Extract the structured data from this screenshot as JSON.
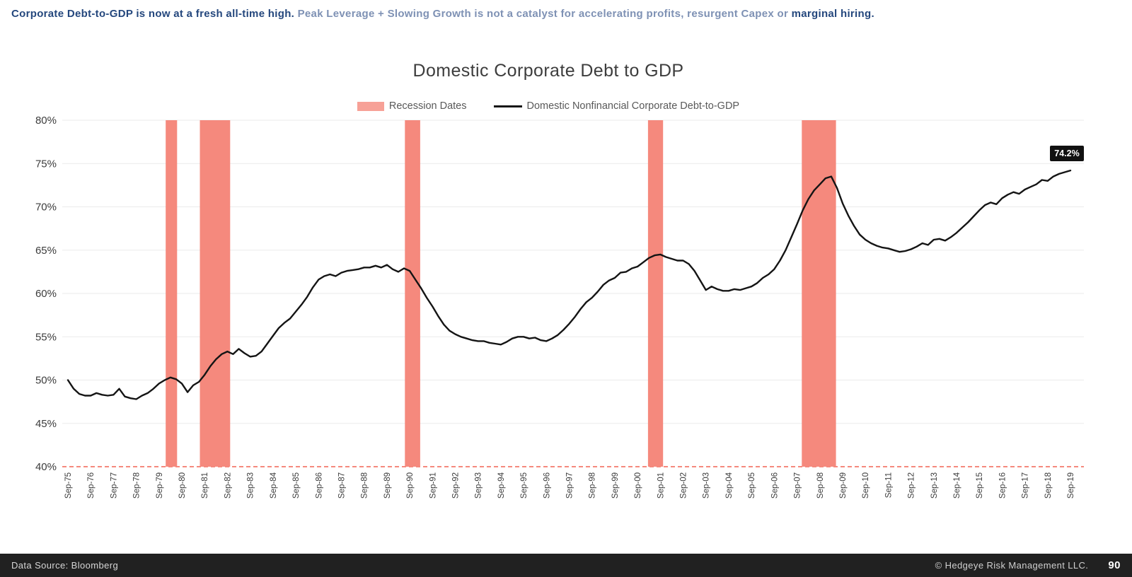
{
  "headline": {
    "part1": "Corporate Debt-to-GDP is now at a fresh all-time high.",
    "part2": " Peak Leverage + Slowing Growth is not a catalyst for accelerating profits, resurgent Capex or ",
    "part3": "marginal hiring."
  },
  "chart_data": {
    "type": "line",
    "title": "Domestic Corporate Debt to GDP",
    "legend": [
      {
        "label": "Recession Dates",
        "swatch": "area",
        "color": "#F5897D"
      },
      {
        "label": "Domestic Nonfinancial Corporate Debt-to-GDP",
        "swatch": "line",
        "color": "#141414"
      }
    ],
    "ylim": [
      40,
      80
    ],
    "y_ticks": [
      40,
      45,
      50,
      55,
      60,
      65,
      70,
      75,
      80
    ],
    "y_tick_suffix": "%",
    "x_start": 1975.75,
    "x_step": 0.25,
    "x_tick_labels": [
      "Sep-75",
      "Sep-76",
      "Sep-77",
      "Sep-78",
      "Sep-79",
      "Sep-80",
      "Sep-81",
      "Sep-82",
      "Sep-83",
      "Sep-84",
      "Sep-85",
      "Sep-86",
      "Sep-87",
      "Sep-88",
      "Sep-89",
      "Sep-90",
      "Sep-91",
      "Sep-92",
      "Sep-93",
      "Sep-94",
      "Sep-95",
      "Sep-96",
      "Sep-97",
      "Sep-98",
      "Sep-99",
      "Sep-00",
      "Sep-01",
      "Sep-02",
      "Sep-03",
      "Sep-04",
      "Sep-05",
      "Sep-06",
      "Sep-07",
      "Sep-08",
      "Sep-09",
      "Sep-10",
      "Sep-11",
      "Sep-12",
      "Sep-13",
      "Sep-14",
      "Sep-15",
      "Sep-16",
      "Sep-17",
      "Sep-18",
      "Sep-19"
    ],
    "values": [
      50.0,
      49.0,
      48.4,
      48.2,
      48.2,
      48.5,
      48.3,
      48.2,
      48.3,
      49.0,
      48.1,
      47.9,
      47.8,
      48.2,
      48.5,
      49.0,
      49.6,
      50.0,
      50.3,
      50.1,
      49.6,
      48.6,
      49.4,
      49.8,
      50.6,
      51.6,
      52.4,
      53.0,
      53.3,
      53.0,
      53.6,
      53.1,
      52.7,
      52.8,
      53.3,
      54.2,
      55.1,
      56.0,
      56.6,
      57.1,
      57.9,
      58.7,
      59.6,
      60.7,
      61.6,
      62.0,
      62.2,
      62.0,
      62.4,
      62.6,
      62.7,
      62.8,
      63.0,
      63.0,
      63.2,
      63.0,
      63.3,
      62.8,
      62.5,
      62.9,
      62.6,
      61.6,
      60.6,
      59.5,
      58.5,
      57.4,
      56.4,
      55.7,
      55.3,
      55.0,
      54.8,
      54.6,
      54.5,
      54.5,
      54.3,
      54.2,
      54.1,
      54.4,
      54.8,
      55.0,
      55.0,
      54.8,
      54.9,
      54.6,
      54.5,
      54.8,
      55.2,
      55.8,
      56.5,
      57.3,
      58.2,
      59.0,
      59.5,
      60.2,
      61.0,
      61.5,
      61.8,
      62.4,
      62.5,
      62.9,
      63.1,
      63.6,
      64.1,
      64.4,
      64.5,
      64.2,
      64.0,
      63.8,
      63.8,
      63.4,
      62.6,
      61.5,
      60.4,
      60.8,
      60.5,
      60.3,
      60.3,
      60.5,
      60.4,
      60.6,
      60.8,
      61.2,
      61.8,
      62.2,
      62.8,
      63.8,
      65.0,
      66.5,
      68.0,
      69.6,
      70.9,
      71.9,
      72.6,
      73.3,
      73.5,
      72.2,
      70.4,
      69.0,
      67.8,
      66.8,
      66.2,
      65.8,
      65.5,
      65.3,
      65.2,
      65.0,
      64.8,
      64.9,
      65.1,
      65.4,
      65.8,
      65.6,
      66.2,
      66.3,
      66.1,
      66.5,
      67.0,
      67.6,
      68.2,
      68.9,
      69.6,
      70.2,
      70.5,
      70.3,
      71.0,
      71.4,
      71.7,
      71.5,
      72.0,
      72.3,
      72.6,
      73.1,
      73.0,
      73.5,
      73.8,
      74.0,
      74.2
    ],
    "recessions": [
      [
        1980.04,
        1980.54
      ],
      [
        1981.54,
        1982.87
      ],
      [
        1990.54,
        1991.21
      ],
      [
        2001.21,
        2001.87
      ],
      [
        2007.96,
        2009.46
      ]
    ],
    "end_label": "74.2%",
    "colors": {
      "line": "#141414",
      "recession": "#F5897D",
      "grid": "#ebebeb",
      "axis_text": "#3c3c3c"
    }
  },
  "footer": {
    "left": "Data Source: Bloomberg",
    "right": "© Hedgeye Risk Management LLC.",
    "page": "90"
  }
}
